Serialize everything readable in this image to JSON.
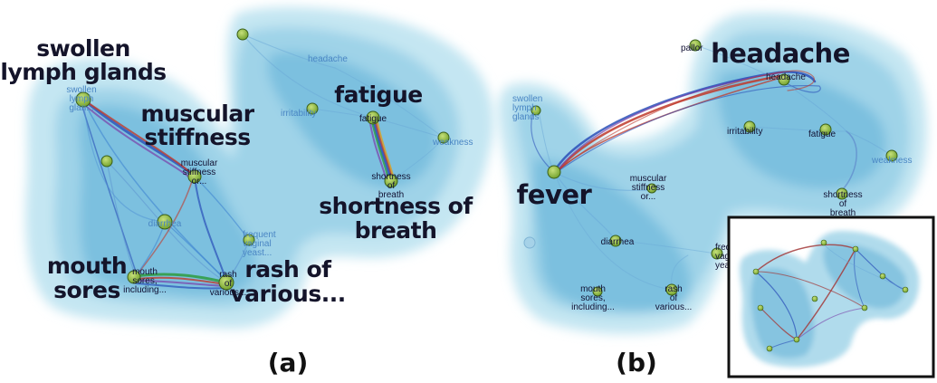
{
  "panel_a": {
    "caption": "(a)",
    "highlight_labels": {
      "swollen": [
        "swollen",
        "lymph glands"
      ],
      "muscular": [
        "muscular",
        "stiffness"
      ],
      "fatigue": [
        "fatigue"
      ],
      "shortness": [
        "shortness of",
        "breath"
      ],
      "mouth": [
        "mouth",
        "sores"
      ],
      "rash": [
        "rash of",
        "various..."
      ]
    },
    "node_labels": {
      "swollen": [
        "swollen",
        "lymph",
        "glan..."
      ],
      "headache": [
        "headache"
      ],
      "irritability": [
        "irritability"
      ],
      "fatigue": [
        "fatigue"
      ],
      "weakness": [
        "weakness"
      ],
      "muscular": [
        "muscular",
        "stiffness",
        "or..."
      ],
      "diarrhea": [
        "diarrhea"
      ],
      "frequent": [
        "frequent",
        "vaginal",
        "yeast..."
      ],
      "shortness": [
        "shortness",
        "of",
        "breath"
      ],
      "mouth": [
        "mouth",
        "sores,",
        "including..."
      ],
      "rash": [
        "rash",
        "of",
        "various..."
      ]
    }
  },
  "panel_b": {
    "caption": "(b)",
    "highlight_labels": {
      "headache": [
        "headache"
      ],
      "fever": [
        "fever"
      ]
    },
    "node_labels": {
      "pallor": [
        "pallor"
      ],
      "headache": [
        "headache"
      ],
      "swollen": [
        "swollen",
        "lymph",
        "glands"
      ],
      "irritability": [
        "irritability"
      ],
      "fatigue": [
        "fatigue"
      ],
      "weakness": [
        "weakness"
      ],
      "fever": [
        "fever"
      ],
      "muscular": [
        "muscular",
        "stiffness",
        "or..."
      ],
      "shortness": [
        "shortness",
        "of",
        "breath"
      ],
      "diarrhea": [
        "diarrhea"
      ],
      "frequent": [
        "freque",
        "vagina",
        "yeast..."
      ],
      "mouth": [
        "mouth",
        "sores,",
        "including..."
      ],
      "rash": [
        "rash",
        "of",
        "various..."
      ]
    }
  },
  "colors": {
    "blob_outer": "#b9e0ee",
    "blob_mid": "#8ccbe4",
    "blob_inner": "#5fb1d8",
    "node_fill": "#8fc23f",
    "edge_blue": "#2a4fb8",
    "edge_red": "#c0392b",
    "edge_green": "#2e9b3f",
    "edge_purple": "#7a3fa8"
  }
}
